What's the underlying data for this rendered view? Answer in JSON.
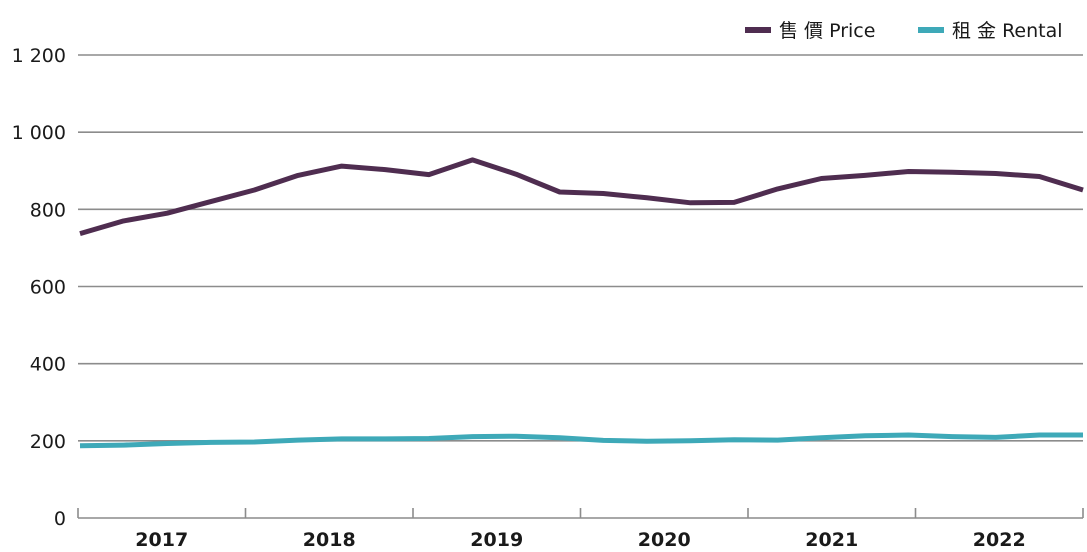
{
  "chart_data": {
    "type": "line",
    "x": [
      "2017Q1",
      "2017Q2",
      "2017Q3",
      "2017Q4",
      "2018Q1",
      "2018Q2",
      "2018Q3",
      "2018Q4",
      "2019Q1",
      "2019Q2",
      "2019Q3",
      "2019Q4",
      "2020Q1",
      "2020Q2",
      "2020Q3",
      "2020Q4",
      "2021Q1",
      "2021Q2",
      "2021Q3",
      "2021Q4",
      "2022Q1",
      "2022Q2",
      "2022Q3",
      "2022Q4"
    ],
    "year_labels": [
      "2017",
      "2018",
      "2019",
      "2020",
      "2021",
      "2022"
    ],
    "y_ticks": [
      "0",
      "200",
      "400",
      "600",
      "800",
      "1 000",
      "1 200"
    ],
    "ylim": [
      0,
      1200
    ],
    "grid": "horizontal",
    "legend_position": "top-right",
    "series": [
      {
        "name": "售 價 Price",
        "color": "#4f2d50",
        "values": [
          737,
          770,
          790,
          820,
          850,
          888,
          912,
          903,
          890,
          928,
          891,
          845,
          841,
          830,
          817,
          818,
          853,
          880,
          888,
          898,
          896,
          893,
          885,
          850
        ]
      },
      {
        "name": "租 金 Rental",
        "color": "#3ea9b8",
        "values": [
          187,
          189,
          193,
          196,
          197,
          202,
          205,
          205,
          206,
          211,
          212,
          208,
          201,
          199,
          200,
          203,
          202,
          208,
          213,
          215,
          211,
          209,
          215,
          215
        ]
      }
    ]
  }
}
